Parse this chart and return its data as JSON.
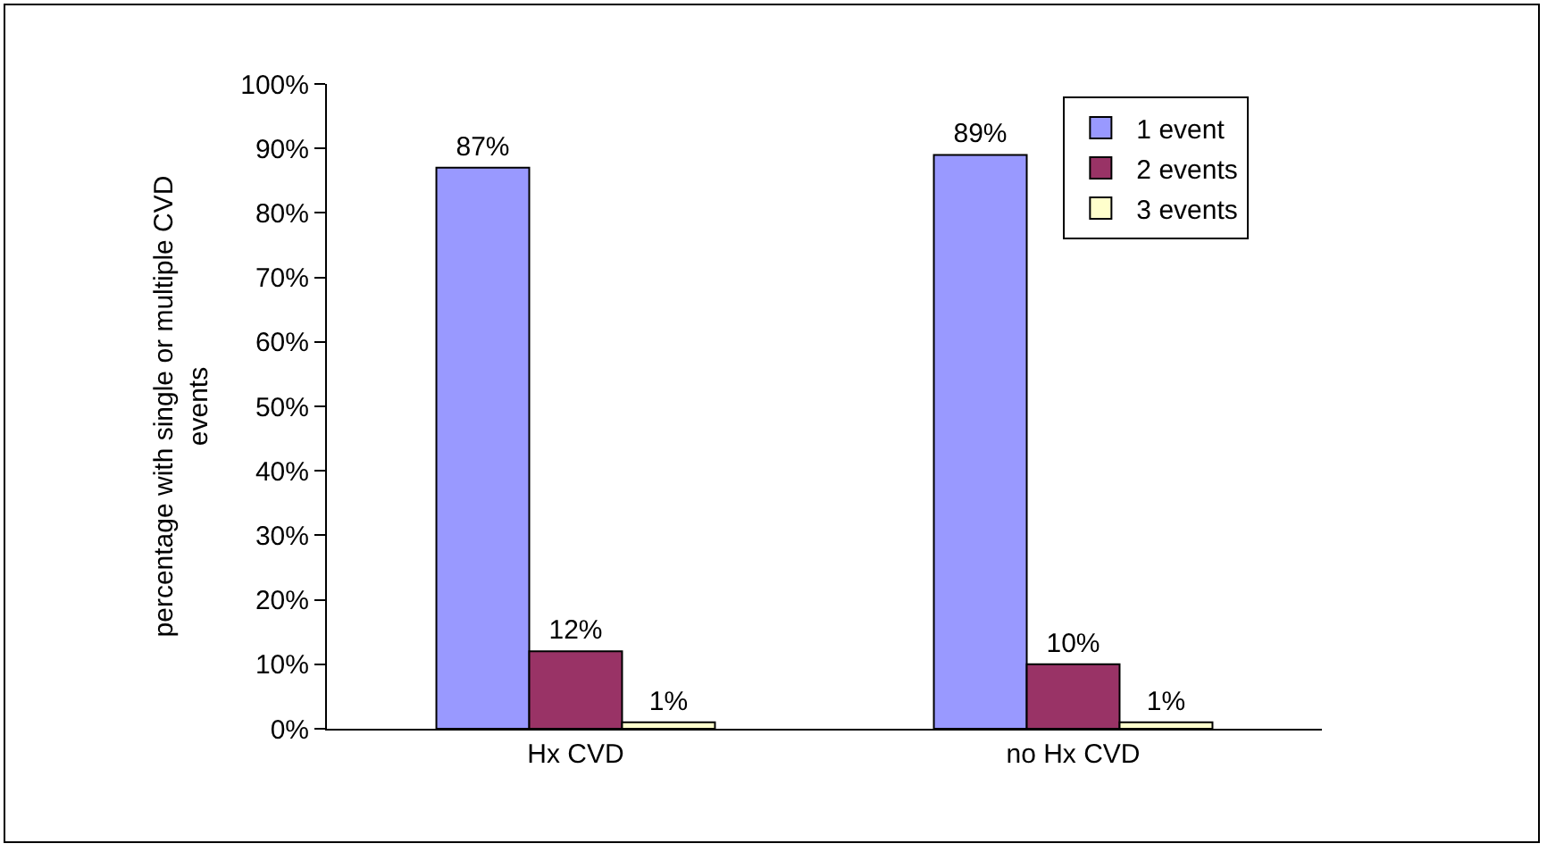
{
  "chart_data": {
    "type": "bar",
    "ylabel": "percentage with single or multiple CVD events",
    "categories": [
      "Hx CVD",
      "no Hx CVD"
    ],
    "series": [
      {
        "name": "1 event",
        "color": "#9999ff",
        "values": [
          87,
          89
        ],
        "value_labels": [
          "87%",
          "89%"
        ]
      },
      {
        "name": "2 events",
        "color": "#993366",
        "values": [
          12,
          10
        ],
        "value_labels": [
          "12%",
          "10%"
        ]
      },
      {
        "name": "3 events",
        "color": "#ffffcc",
        "values": [
          1,
          1
        ],
        "value_labels": [
          "1%",
          "1%"
        ]
      }
    ],
    "ylim": [
      0,
      100
    ],
    "yticks": [
      {
        "value": 0,
        "label": "0%"
      },
      {
        "value": 10,
        "label": "10%"
      },
      {
        "value": 20,
        "label": "20%"
      },
      {
        "value": 30,
        "label": "30%"
      },
      {
        "value": 40,
        "label": "40%"
      },
      {
        "value": 50,
        "label": "50%"
      },
      {
        "value": 60,
        "label": "60%"
      },
      {
        "value": 70,
        "label": "70%"
      },
      {
        "value": 80,
        "label": "80%"
      },
      {
        "value": 90,
        "label": "90%"
      },
      {
        "value": 100,
        "label": "100%"
      }
    ],
    "grid": false,
    "legend": "top right"
  }
}
